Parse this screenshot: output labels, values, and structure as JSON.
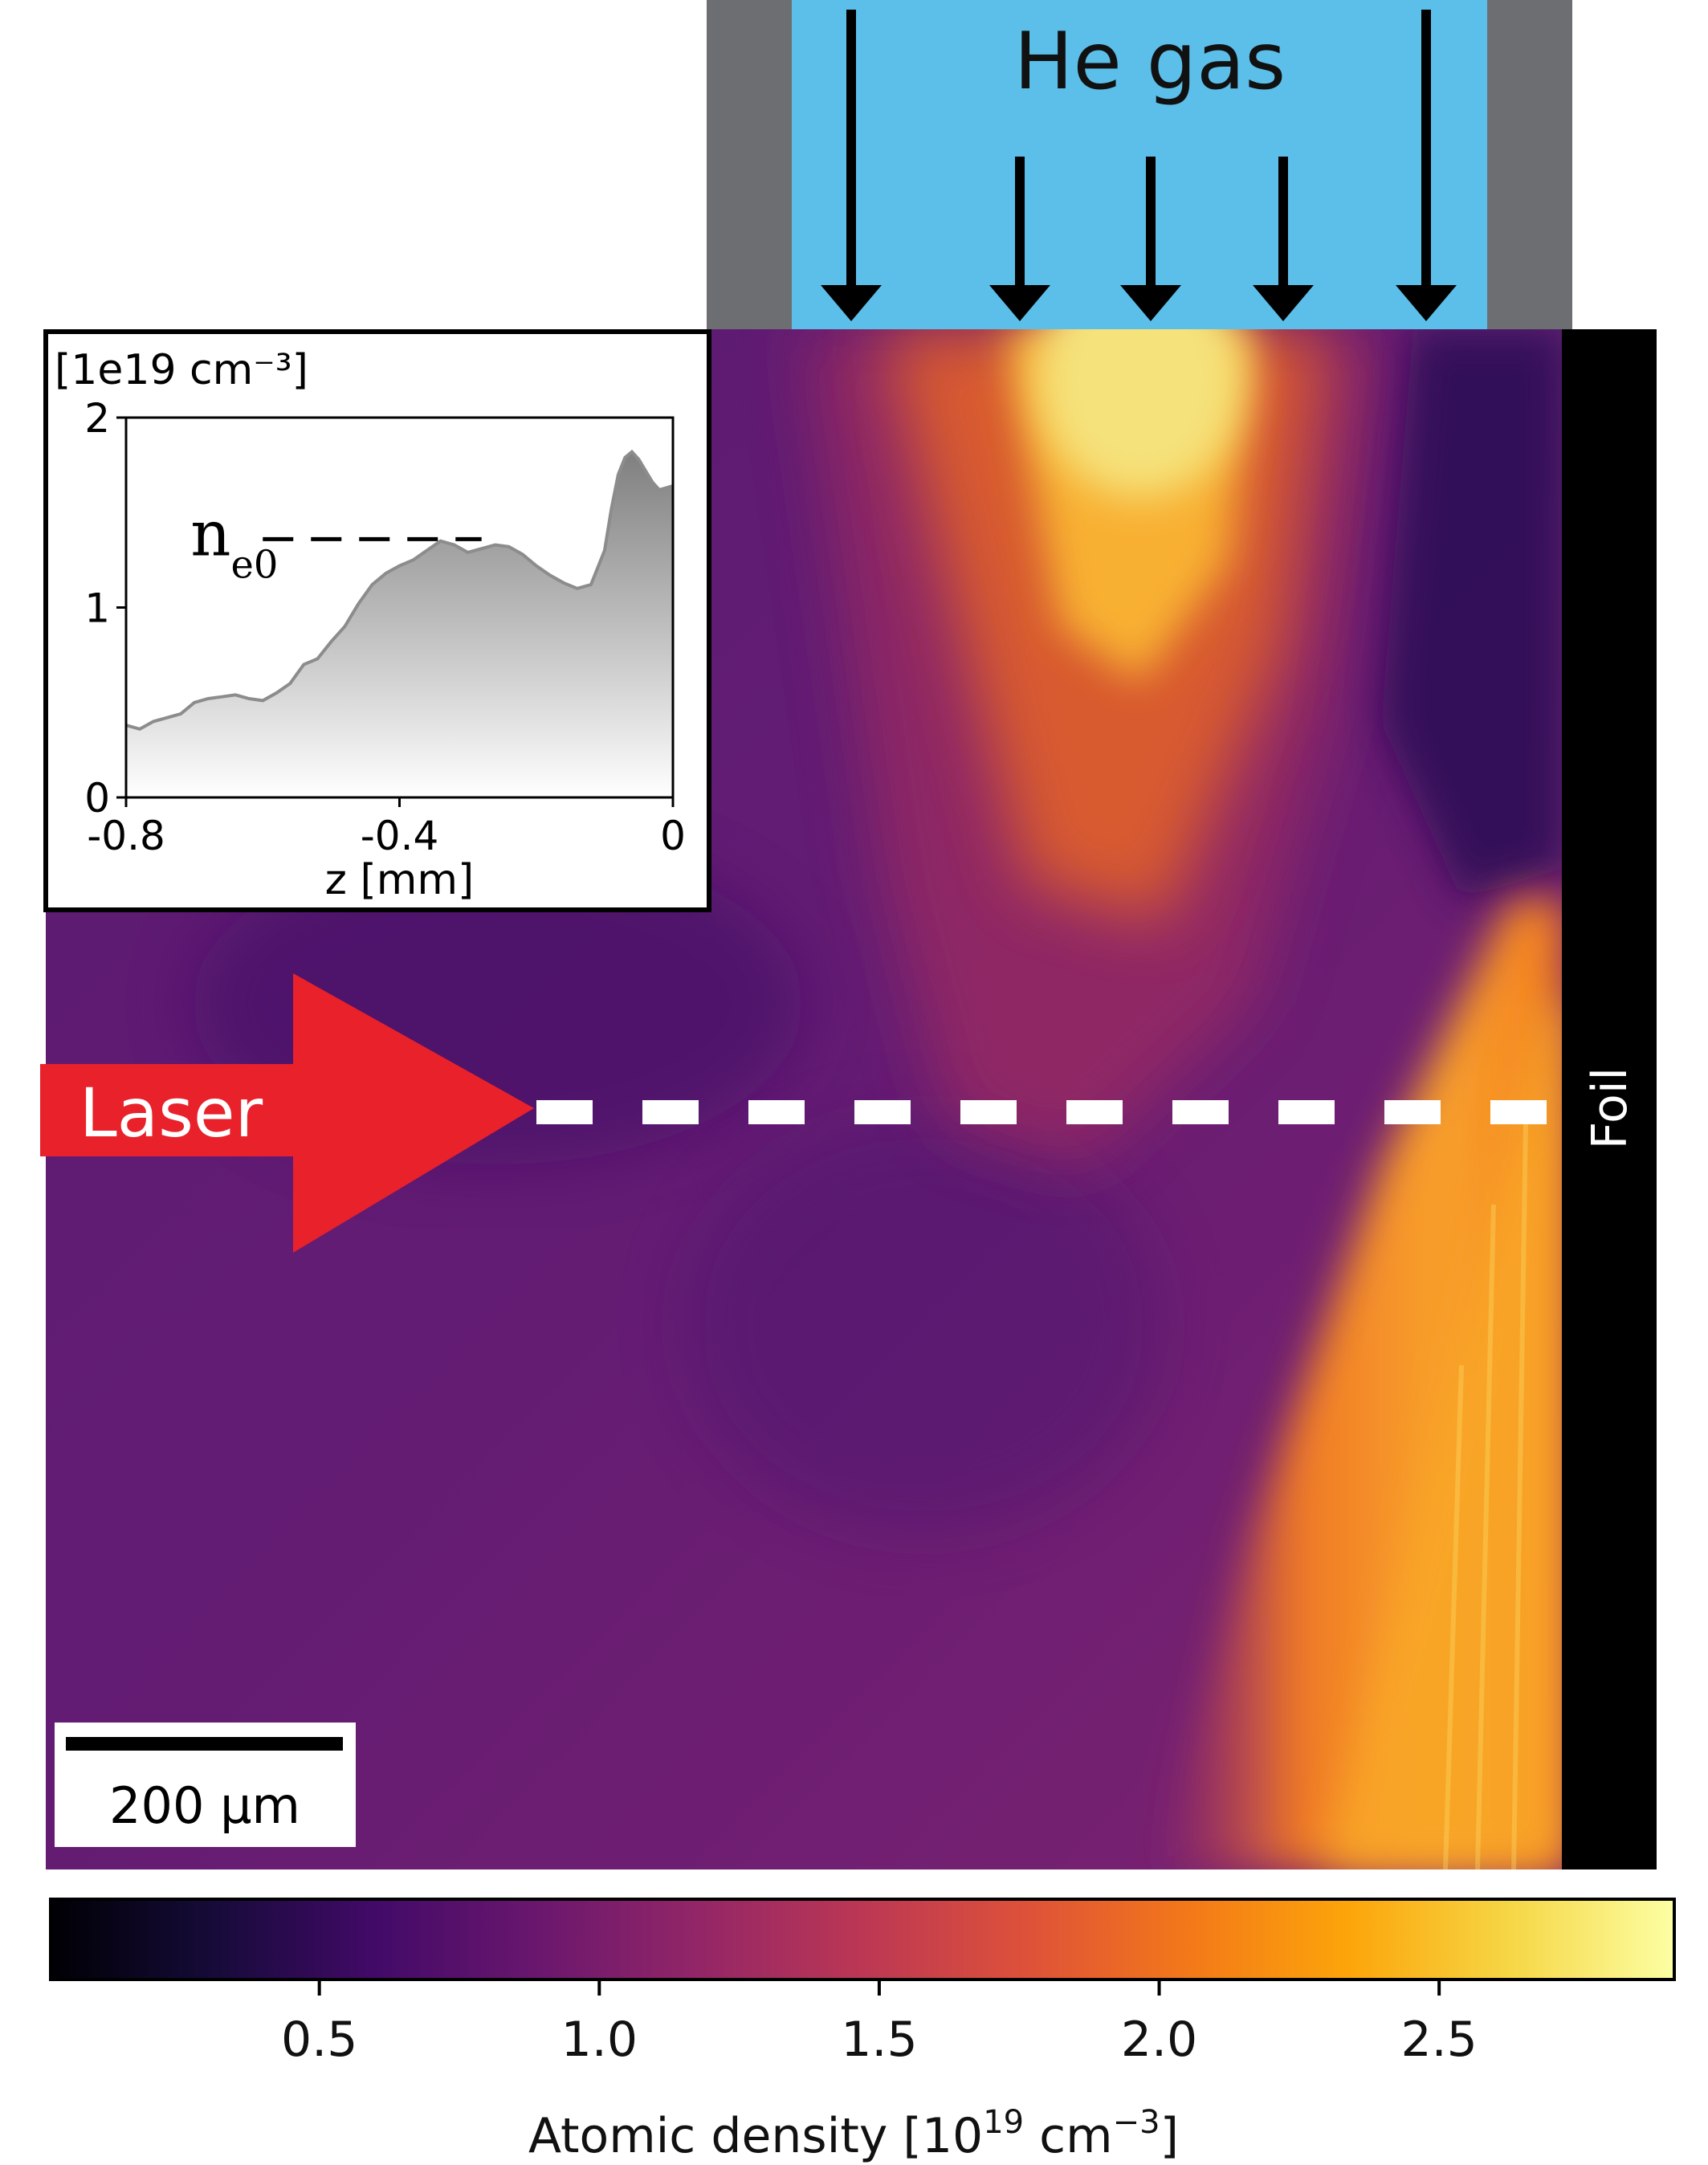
{
  "nozzle": {
    "gas_label": "He gas"
  },
  "laser": {
    "label": "Laser"
  },
  "foil": {
    "label": "Foil"
  },
  "scale_bar": {
    "label": "200 µm"
  },
  "colors": {
    "gas": "#5cbfe9",
    "nozzle_wall": "#6d6e71",
    "laser_arrow": "#e8212b",
    "foil": "#000000",
    "inset_fill_top": "#8a8a8a",
    "inset_line": "#8c8c8c"
  },
  "colorbar": {
    "label_text": "Atomic density [10",
    "label_exp": "19",
    "label_unit": " cm",
    "label_unit_exp": "−3",
    "label_close": "]",
    "range": [
      0.02,
      2.92
    ],
    "ticks": [
      "0.5",
      "1.0",
      "1.5",
      "2.0",
      "2.5"
    ],
    "colormap": "inferno"
  },
  "chart_data": {
    "type": "area",
    "unit_label": "[1e19 cm⁻³]",
    "xlabel": "z [mm]",
    "xlim": [
      -0.8,
      0
    ],
    "ylim": [
      0,
      2
    ],
    "x_ticks": [
      "-0.8",
      "-0.4",
      "0"
    ],
    "y_ticks": [
      "0",
      "1",
      "2"
    ],
    "ne0_symbol": "n",
    "ne0_sub": "e0",
    "ne0_level": 1.36,
    "ne0_range": [
      -0.6,
      -0.28
    ],
    "x": [
      -0.8,
      -0.78,
      -0.76,
      -0.74,
      -0.72,
      -0.7,
      -0.68,
      -0.66,
      -0.64,
      -0.62,
      -0.6,
      -0.58,
      -0.56,
      -0.54,
      -0.52,
      -0.5,
      -0.48,
      -0.46,
      -0.44,
      -0.42,
      -0.4,
      -0.38,
      -0.36,
      -0.34,
      -0.32,
      -0.3,
      -0.28,
      -0.26,
      -0.24,
      -0.22,
      -0.2,
      -0.18,
      -0.16,
      -0.14,
      -0.12,
      -0.1,
      -0.09,
      -0.08,
      -0.07,
      -0.06,
      -0.05,
      -0.04,
      -0.03,
      -0.02,
      -0.01,
      0.0
    ],
    "y": [
      0.38,
      0.36,
      0.4,
      0.42,
      0.44,
      0.5,
      0.52,
      0.53,
      0.54,
      0.52,
      0.51,
      0.55,
      0.6,
      0.7,
      0.73,
      0.82,
      0.9,
      1.02,
      1.12,
      1.18,
      1.22,
      1.25,
      1.3,
      1.35,
      1.33,
      1.29,
      1.31,
      1.33,
      1.32,
      1.28,
      1.22,
      1.17,
      1.13,
      1.1,
      1.12,
      1.3,
      1.52,
      1.7,
      1.79,
      1.82,
      1.78,
      1.72,
      1.66,
      1.62,
      1.63,
      1.64
    ]
  }
}
